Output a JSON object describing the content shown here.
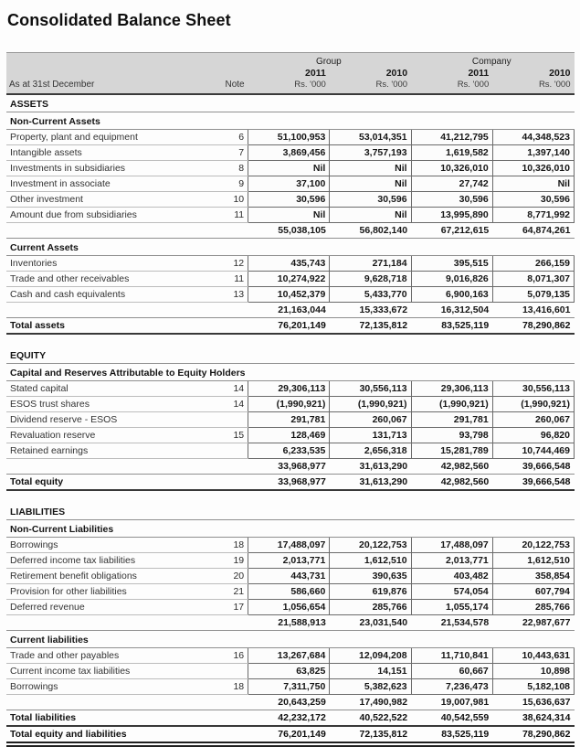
{
  "title": "Consolidated Balance Sheet",
  "header": {
    "group_label": "Group",
    "company_label": "Company",
    "date_label": "As at 31st December",
    "note_label": "Note",
    "columns": [
      {
        "year": "2011",
        "unit": "Rs. '000"
      },
      {
        "year": "2010",
        "unit": "Rs. '000"
      },
      {
        "year": "2011",
        "unit": "Rs. '000"
      },
      {
        "year": "2010",
        "unit": "Rs. '000"
      }
    ]
  },
  "table": {
    "rows": [
      {
        "type": "section",
        "label": "ASSETS"
      },
      {
        "type": "section",
        "label": "Non-Current Assets"
      },
      {
        "type": "data",
        "label": "Property, plant and equipment",
        "note": "6",
        "values": [
          "51,100,953",
          "53,014,351",
          "41,212,795",
          "44,348,523"
        ]
      },
      {
        "type": "data",
        "label": "Intangible assets",
        "note": "7",
        "values": [
          "3,869,456",
          "3,757,193",
          "1,619,582",
          "1,397,140"
        ]
      },
      {
        "type": "data",
        "label": "Investments in subsidiaries",
        "note": "8",
        "values": [
          "Nil",
          "Nil",
          "10,326,010",
          "10,326,010"
        ]
      },
      {
        "type": "data",
        "label": "Investment in associate",
        "note": "9",
        "values": [
          "37,100",
          "Nil",
          "27,742",
          "Nil"
        ]
      },
      {
        "type": "data",
        "label": "Other investment",
        "note": "10",
        "values": [
          "30,596",
          "30,596",
          "30,596",
          "30,596"
        ]
      },
      {
        "type": "data",
        "label": "Amount due from subsidiaries",
        "note": "11",
        "values": [
          "Nil",
          "Nil",
          "13,995,890",
          "8,771,992"
        ]
      },
      {
        "type": "subtotal",
        "label": "",
        "note": "",
        "values": [
          "55,038,105",
          "56,802,140",
          "67,212,615",
          "64,874,261"
        ]
      },
      {
        "type": "section",
        "label": "Current Assets"
      },
      {
        "type": "data",
        "label": "Inventories",
        "note": "12",
        "values": [
          "435,743",
          "271,184",
          "395,515",
          "266,159"
        ]
      },
      {
        "type": "data",
        "label": "Trade and other receivables",
        "note": "11",
        "values": [
          "10,274,922",
          "9,628,718",
          "9,016,826",
          "8,071,307"
        ]
      },
      {
        "type": "data",
        "label": "Cash and cash equivalents",
        "note": "13",
        "values": [
          "10,452,379",
          "5,433,770",
          "6,900,163",
          "5,079,135"
        ]
      },
      {
        "type": "subtotal",
        "label": "",
        "note": "",
        "values": [
          "21,163,044",
          "15,333,672",
          "16,312,504",
          "13,416,601"
        ]
      },
      {
        "type": "total",
        "label": "Total assets",
        "note": "",
        "values": [
          "76,201,149",
          "72,135,812",
          "83,525,119",
          "78,290,862"
        ]
      },
      {
        "type": "spacer"
      },
      {
        "type": "section",
        "label": "EQUITY"
      },
      {
        "type": "section",
        "label": "Capital and Reserves Attributable to Equity Holders"
      },
      {
        "type": "data",
        "label": "Stated capital",
        "note": "14",
        "values": [
          "29,306,113",
          "30,556,113",
          "29,306,113",
          "30,556,113"
        ]
      },
      {
        "type": "data",
        "label": "ESOS trust shares",
        "note": "14",
        "values": [
          "(1,990,921)",
          "(1,990,921)",
          "(1,990,921)",
          "(1,990,921)"
        ]
      },
      {
        "type": "data",
        "label": "Dividend reserve - ESOS",
        "note": "",
        "values": [
          "291,781",
          "260,067",
          "291,781",
          "260,067"
        ]
      },
      {
        "type": "data",
        "label": "Revaluation reserve",
        "note": "15",
        "values": [
          "128,469",
          "131,713",
          "93,798",
          "96,820"
        ]
      },
      {
        "type": "data",
        "label": "Retained earnings",
        "note": "",
        "values": [
          "6,233,535",
          "2,656,318",
          "15,281,789",
          "10,744,469"
        ]
      },
      {
        "type": "subtotal",
        "label": "",
        "note": "",
        "values": [
          "33,968,977",
          "31,613,290",
          "42,982,560",
          "39,666,548"
        ]
      },
      {
        "type": "total",
        "label": "Total equity",
        "note": "",
        "values": [
          "33,968,977",
          "31,613,290",
          "42,982,560",
          "39,666,548"
        ]
      },
      {
        "type": "spacer"
      },
      {
        "type": "section",
        "label": "LIABILITIES"
      },
      {
        "type": "section",
        "label": "Non-Current Liabilities"
      },
      {
        "type": "data",
        "label": "Borrowings",
        "note": "18",
        "values": [
          "17,488,097",
          "20,122,753",
          "17,488,097",
          "20,122,753"
        ]
      },
      {
        "type": "data",
        "label": "Deferred income tax liabilities",
        "note": "19",
        "values": [
          "2,013,771",
          "1,612,510",
          "2,013,771",
          "1,612,510"
        ]
      },
      {
        "type": "data",
        "label": "Retirement benefit obligations",
        "note": "20",
        "values": [
          "443,731",
          "390,635",
          "403,482",
          "358,854"
        ]
      },
      {
        "type": "data",
        "label": "Provision for other liabilities",
        "note": "21",
        "values": [
          "586,660",
          "619,876",
          "574,054",
          "607,794"
        ]
      },
      {
        "type": "data",
        "label": "Deferred revenue",
        "note": "17",
        "values": [
          "1,056,654",
          "285,766",
          "1,055,174",
          "285,766"
        ]
      },
      {
        "type": "subtotal",
        "label": "",
        "note": "",
        "values": [
          "21,588,913",
          "23,031,540",
          "21,534,578",
          "22,987,677"
        ]
      },
      {
        "type": "section",
        "label": "Current liabilities"
      },
      {
        "type": "data",
        "label": "Trade and other payables",
        "note": "16",
        "values": [
          "13,267,684",
          "12,094,208",
          "11,710,841",
          "10,443,631"
        ]
      },
      {
        "type": "data",
        "label": "Current income tax liabilities",
        "note": "",
        "values": [
          "63,825",
          "14,151",
          "60,667",
          "10,898"
        ]
      },
      {
        "type": "data",
        "label": "Borrowings",
        "note": "18",
        "values": [
          "7,311,750",
          "5,382,623",
          "7,236,473",
          "5,182,108"
        ]
      },
      {
        "type": "subtotal",
        "label": "",
        "note": "",
        "values": [
          "20,643,259",
          "17,490,982",
          "19,007,981",
          "15,636,637"
        ]
      },
      {
        "type": "total",
        "label": "Total liabilities",
        "note": "",
        "values": [
          "42,232,172",
          "40,522,522",
          "40,542,559",
          "38,624,314"
        ]
      },
      {
        "type": "total",
        "label": "Total equity and liabilities",
        "note": "",
        "values": [
          "76,201,149",
          "72,135,812",
          "83,525,119",
          "78,290,862"
        ],
        "final": true
      }
    ]
  }
}
